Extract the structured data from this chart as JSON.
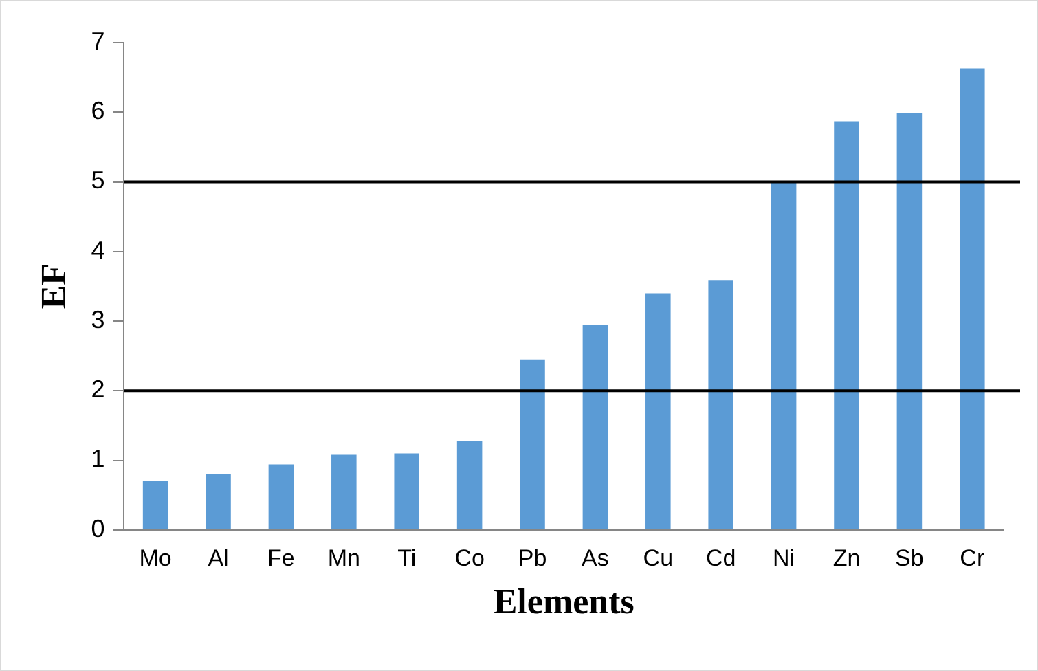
{
  "chart_data": {
    "type": "bar",
    "xlabel": "Elements",
    "ylabel": "EF",
    "categories": [
      "Mo",
      "Al",
      "Fe",
      "Mn",
      "Ti",
      "Co",
      "Pb",
      "As",
      "Cu",
      "Cd",
      "Ni",
      "Zn",
      "Sb",
      "Cr"
    ],
    "values": [
      0.71,
      0.8,
      0.94,
      1.08,
      1.1,
      1.28,
      2.45,
      2.94,
      3.4,
      3.59,
      4.99,
      5.87,
      5.99,
      6.63
    ],
    "color": "#5b9bd5",
    "ylim": [
      0,
      7
    ],
    "yticks": [
      0,
      1,
      2,
      3,
      4,
      5,
      6,
      7
    ],
    "grid": false,
    "legend": false,
    "ref_lines": [
      {
        "axis": "y",
        "value": 5,
        "color": "#000000"
      },
      {
        "axis": "y",
        "value": 2,
        "color": "#000000"
      }
    ]
  }
}
